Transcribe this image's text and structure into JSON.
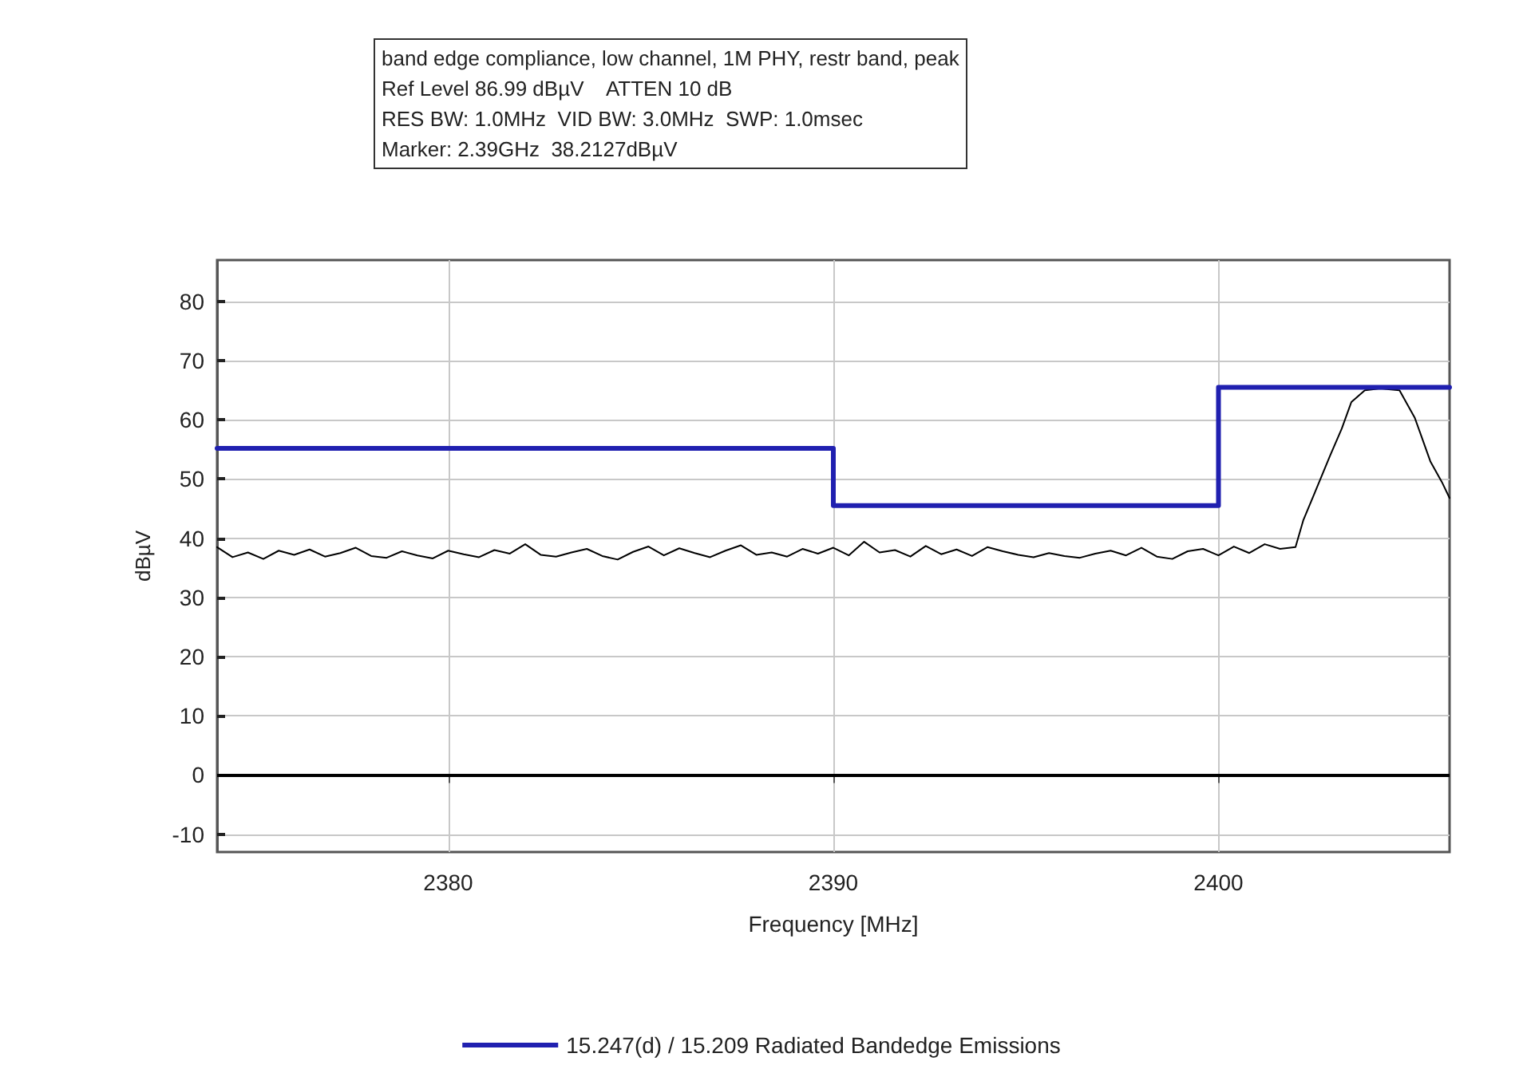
{
  "chart_data": {
    "type": "line",
    "xlabel": "Frequency [MHz]",
    "ylabel": "dBµV",
    "annotations": [
      "band edge compliance, low channel, 1M PHY, restr band, peak",
      "Ref Level 86.99 dBµV    ATTEN 10 dB",
      "RES BW: 1.0MHz  VID BW: 3.0MHz  SWP: 1.0msec",
      "Marker: 2.39GHz  38.2127dBµV"
    ],
    "xlim": [
      2374,
      2406
    ],
    "xticks": [
      2380,
      2390,
      2400
    ],
    "ylim": [
      -13.01,
      86.99
    ],
    "yticks": [
      -10,
      0,
      10,
      20,
      30,
      40,
      50,
      60,
      70,
      80
    ],
    "grid": true,
    "legend": "bottom",
    "marker": "none",
    "line_style": "solid",
    "ref_lines": [
      {
        "axis": "y",
        "value": 0,
        "color": "#000000"
      }
    ],
    "series": [
      {
        "color": "#000000",
        "x": [
          2374,
          2374.4,
          2374.8,
          2375.2,
          2375.6,
          2376,
          2376.4,
          2376.8,
          2377.2,
          2377.6,
          2378,
          2378.4,
          2378.8,
          2379.2,
          2379.6,
          2380,
          2380.4,
          2380.8,
          2381.2,
          2381.6,
          2382,
          2382.4,
          2382.8,
          2383.2,
          2383.6,
          2384,
          2384.4,
          2384.8,
          2385.2,
          2385.6,
          2386,
          2386.4,
          2386.8,
          2387.2,
          2387.6,
          2388,
          2388.4,
          2388.8,
          2389.2,
          2389.6,
          2390,
          2390.4,
          2390.8,
          2391.2,
          2391.6,
          2392,
          2392.4,
          2392.8,
          2393.2,
          2393.6,
          2394,
          2394.4,
          2394.8,
          2395.2,
          2395.6,
          2396,
          2396.4,
          2396.8,
          2397.2,
          2397.6,
          2398,
          2398.4,
          2398.8,
          2399.2,
          2399.6,
          2400,
          2400.4,
          2400.8,
          2401.2,
          2401.6,
          2402,
          2402.2,
          2402.5,
          2402.9,
          2403.2,
          2403.45,
          2403.8,
          2404.2,
          2404.7,
          2405.1,
          2405.5,
          2405.8,
          2406
        ],
        "values": [
          38.5,
          36.8,
          37.6,
          36.5,
          37.9,
          37.2,
          38.1,
          36.9,
          37.5,
          38.4,
          37.0,
          36.7,
          37.8,
          37.1,
          36.6,
          37.9,
          37.3,
          36.8,
          38.0,
          37.4,
          39.0,
          37.2,
          36.9,
          37.6,
          38.2,
          37.0,
          36.4,
          37.7,
          38.6,
          37.1,
          38.3,
          37.5,
          36.8,
          37.9,
          38.8,
          37.2,
          37.6,
          36.9,
          38.2,
          37.4,
          38.4,
          37.1,
          39.4,
          37.6,
          38.0,
          36.9,
          38.7,
          37.3,
          38.1,
          37.0,
          38.5,
          37.8,
          37.2,
          36.8,
          37.5,
          37.0,
          36.7,
          37.4,
          37.9,
          37.1,
          38.4,
          36.9,
          36.5,
          37.8,
          38.2,
          37.1,
          38.6,
          37.5,
          39.0,
          38.2,
          38.5,
          43,
          47.7,
          54,
          58.5,
          63,
          65,
          65.3,
          65,
          60.3,
          53,
          49.5,
          46.8
        ]
      },
      {
        "name": "15.247(d) / 15.209 Radiated Bandedge Emissions",
        "color": "#2020b0",
        "x": [
          2374,
          2390,
          2390,
          2400,
          2400,
          2406
        ],
        "values": [
          55.2,
          55.2,
          45.5,
          45.5,
          65.5,
          65.5
        ]
      }
    ]
  }
}
